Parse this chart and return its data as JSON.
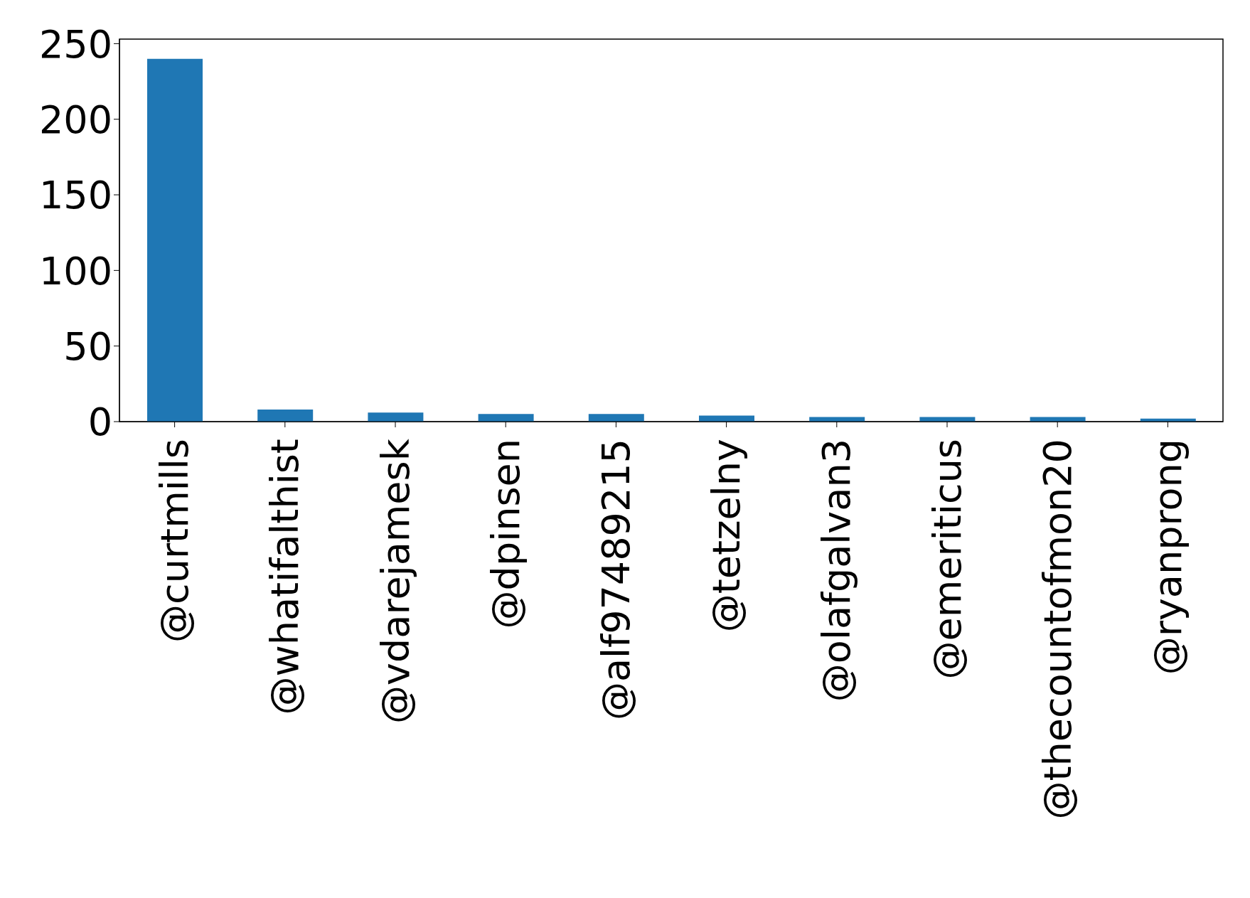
{
  "chart_data": {
    "type": "bar",
    "categories": [
      "@curtmills",
      "@whatifalthist",
      "@vdarejamesk",
      "@dpinsen",
      "@alf97489215",
      "@tetzelny",
      "@olafgalvan3",
      "@emeriticus",
      "@thecountofmon20",
      "@ryanprong"
    ],
    "values": [
      240,
      8,
      6,
      5,
      5,
      4,
      3,
      3,
      3,
      2
    ],
    "color": "#1f77b4",
    "ylim": [
      0,
      253
    ],
    "yticks": [
      0,
      50,
      100,
      150,
      200,
      250
    ],
    "grid": false
  }
}
